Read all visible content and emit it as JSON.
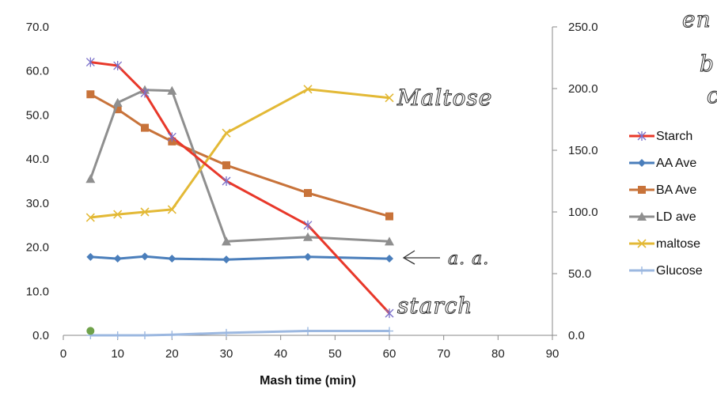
{
  "chart_data": {
    "type": "line",
    "title": "",
    "xlabel": "Mash time (min)",
    "ylabel": "",
    "xlim": [
      0,
      90
    ],
    "xticks": [
      "0",
      "10",
      "20",
      "30",
      "40",
      "50",
      "60",
      "70",
      "80",
      "90"
    ],
    "ylim": [
      0,
      70
    ],
    "yticks": [
      "0.0",
      "10.0",
      "20.0",
      "30.0",
      "40.0",
      "50.0",
      "60.0",
      "70.0"
    ],
    "y2lim": [
      0,
      250
    ],
    "y2ticks": [
      "0.0",
      "50.0",
      "100.0",
      "150.0",
      "200.0",
      "250.0"
    ],
    "series": [
      {
        "name": "Starch",
        "axis": "left",
        "color": "#e8382a",
        "marker": "star",
        "x": [
          5,
          10,
          15,
          20,
          30,
          45,
          60
        ],
        "y": [
          62.0,
          61.2,
          55.0,
          45.0,
          35.0,
          25.0,
          5.0
        ]
      },
      {
        "name": "AA Ave",
        "axis": "left",
        "color": "#4a7ebb",
        "marker": "diamond",
        "x": [
          5,
          10,
          15,
          20,
          30,
          45,
          60
        ],
        "y": [
          17.8,
          17.4,
          17.9,
          17.4,
          17.2,
          17.8,
          17.4
        ]
      },
      {
        "name": "BA Ave",
        "axis": "left",
        "color": "#c8733a",
        "marker": "square",
        "x": [
          5,
          10,
          15,
          20,
          30,
          45,
          60
        ],
        "y": [
          54.7,
          51.3,
          47.1,
          44.0,
          38.6,
          32.3,
          27.0
        ]
      },
      {
        "name": "LD ave",
        "axis": "left",
        "color": "#8f8f8f",
        "marker": "triangle",
        "x": [
          5,
          10,
          15,
          20,
          30,
          45,
          60
        ],
        "y": [
          35.5,
          52.8,
          55.7,
          55.5,
          21.3,
          22.3,
          21.3
        ]
      },
      {
        "name": "maltose",
        "axis": "right",
        "color": "#e3b936",
        "marker": "x",
        "x": [
          5,
          10,
          15,
          20,
          30,
          45,
          60
        ],
        "y": [
          95.5,
          98.0,
          100.0,
          102.0,
          164.0,
          199.5,
          192.5
        ]
      },
      {
        "name": "Glucose",
        "axis": "right",
        "color": "#9cb8e0",
        "marker": "plus",
        "x": [
          5,
          10,
          15,
          20,
          30,
          45,
          60
        ],
        "y": [
          0,
          0,
          0,
          0.5,
          2.0,
          3.5,
          3.5
        ]
      }
    ],
    "extra_point": {
      "x": 5,
      "y": 1.0,
      "axis": "left",
      "color": "#6fa24a"
    },
    "legend_position": "right",
    "annotations": {
      "maltose": "Maltose",
      "amino": "a. a.",
      "starch": "starch",
      "corner_1": "en",
      "corner_2": "b",
      "corner_3": "c"
    }
  }
}
